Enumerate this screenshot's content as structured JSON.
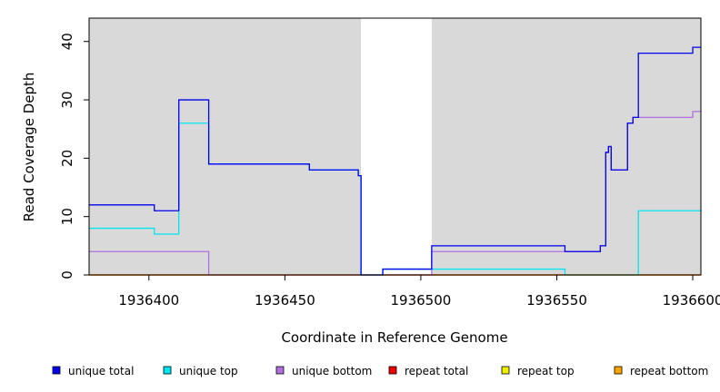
{
  "chart_data": {
    "type": "line",
    "title": "",
    "xlabel": "Coordinate in Reference Genome",
    "ylabel": "Read Coverage Depth",
    "xlim": [
      1936378,
      1936603
    ],
    "ylim": [
      0,
      44
    ],
    "x_ticks": [
      1936400,
      1936450,
      1936500,
      1936550,
      1936600
    ],
    "y_ticks": [
      0,
      10,
      20,
      30,
      40
    ],
    "grid": false,
    "legend_position": "bottom",
    "shaded_regions": [
      {
        "x_start": 1936378,
        "x_end": 1936478,
        "color": "#d9d9d9"
      },
      {
        "x_start": 1936504,
        "x_end": 1936603,
        "color": "#d9d9d9"
      }
    ],
    "series": [
      {
        "name": "unique total",
        "color": "#0000ee",
        "points": [
          [
            1936378,
            12
          ],
          [
            1936402,
            12
          ],
          [
            1936402,
            11
          ],
          [
            1936411,
            11
          ],
          [
            1936411,
            30
          ],
          [
            1936422,
            30
          ],
          [
            1936422,
            19
          ],
          [
            1936459,
            19
          ],
          [
            1936459,
            18
          ],
          [
            1936477,
            18
          ],
          [
            1936477,
            17
          ],
          [
            1936478,
            17
          ],
          [
            1936478,
            0
          ],
          [
            1936486,
            0
          ],
          [
            1936486,
            1
          ],
          [
            1936504,
            1
          ],
          [
            1936504,
            5
          ],
          [
            1936553,
            5
          ],
          [
            1936553,
            4
          ],
          [
            1936566,
            4
          ],
          [
            1936566,
            5
          ],
          [
            1936568,
            5
          ],
          [
            1936568,
            21
          ],
          [
            1936569,
            21
          ],
          [
            1936569,
            22
          ],
          [
            1936570,
            22
          ],
          [
            1936570,
            18
          ],
          [
            1936576,
            18
          ],
          [
            1936576,
            26
          ],
          [
            1936578,
            26
          ],
          [
            1936578,
            27
          ],
          [
            1936580,
            27
          ],
          [
            1936580,
            38
          ],
          [
            1936600,
            38
          ],
          [
            1936600,
            39
          ],
          [
            1936603,
            39
          ]
        ]
      },
      {
        "name": "unique top",
        "color": "#00e5ee",
        "points": [
          [
            1936378,
            8
          ],
          [
            1936402,
            8
          ],
          [
            1936402,
            7
          ],
          [
            1936411,
            7
          ],
          [
            1936411,
            26
          ],
          [
            1936422,
            26
          ],
          [
            1936422,
            19
          ],
          [
            1936459,
            19
          ],
          [
            1936459,
            18
          ],
          [
            1936477,
            18
          ],
          [
            1936477,
            17
          ],
          [
            1936478,
            17
          ],
          [
            1936478,
            0
          ],
          [
            1936486,
            0
          ],
          [
            1936486,
            1
          ],
          [
            1936553,
            1
          ],
          [
            1936553,
            0
          ],
          [
            1936580,
            0
          ],
          [
            1936580,
            11
          ],
          [
            1936603,
            11
          ]
        ]
      },
      {
        "name": "unique bottom",
        "color": "#b070e0",
        "points": [
          [
            1936378,
            4
          ],
          [
            1936422,
            4
          ],
          [
            1936422,
            0
          ],
          [
            1936504,
            0
          ],
          [
            1936504,
            4
          ],
          [
            1936566,
            4
          ],
          [
            1936566,
            5
          ],
          [
            1936568,
            5
          ],
          [
            1936568,
            21
          ],
          [
            1936569,
            21
          ],
          [
            1936569,
            22
          ],
          [
            1936570,
            22
          ],
          [
            1936570,
            18
          ],
          [
            1936576,
            18
          ],
          [
            1936576,
            26
          ],
          [
            1936578,
            26
          ],
          [
            1936578,
            27
          ],
          [
            1936600,
            27
          ],
          [
            1936600,
            28
          ],
          [
            1936603,
            28
          ]
        ]
      },
      {
        "name": "repeat total",
        "color": "#ee0000",
        "points": [
          [
            1936378,
            0
          ],
          [
            1936603,
            0
          ]
        ]
      },
      {
        "name": "repeat top",
        "color": "#eeee00",
        "points": [
          [
            1936378,
            0
          ],
          [
            1936603,
            0
          ]
        ]
      },
      {
        "name": "repeat bottom",
        "color": "#ffa500",
        "points": [
          [
            1936378,
            0
          ],
          [
            1936603,
            0
          ]
        ]
      }
    ]
  }
}
